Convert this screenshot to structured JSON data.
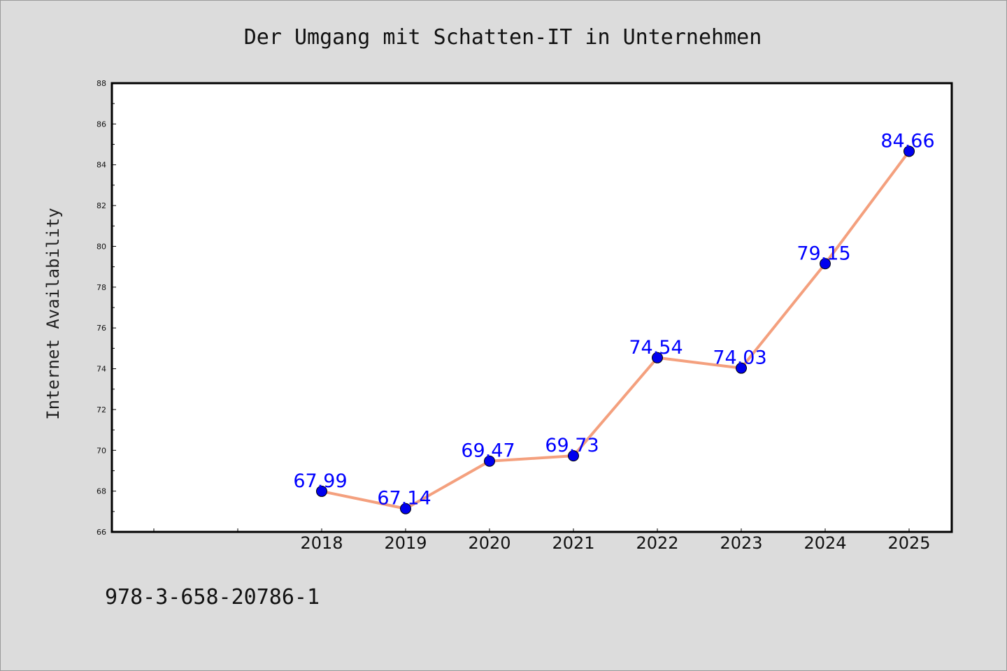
{
  "chart_data": {
    "type": "line",
    "title": "Der Umgang mit Schatten-IT in Unternehmen",
    "xlabel": "",
    "ylabel": "Internet Availability",
    "categories": [
      "2018",
      "2019",
      "2020",
      "2021",
      "2022",
      "2023",
      "2024",
      "2025"
    ],
    "series": [
      {
        "values": [
          67.99,
          67.14,
          69.47,
          69.73,
          74.54,
          74.03,
          79.15,
          84.66
        ]
      }
    ],
    "data_labels": [
      "67.99",
      "67.14",
      "69.47",
      "69.73",
      "74.54",
      "74.03",
      "79.15",
      "84.66"
    ],
    "ylim": [
      66,
      88
    ],
    "yticks": [
      66,
      68,
      70,
      72,
      74,
      76,
      78,
      80,
      82,
      84,
      86,
      88
    ],
    "grid": false,
    "legend": "none",
    "colors": {
      "line": "#f4a07e",
      "marker": "#0000ee",
      "data_label": "#0000ff",
      "plot_background": "#ffffff",
      "figure_background": "#dcdcdc"
    }
  },
  "footer": {
    "isbn": "978-3-658-20786-1"
  }
}
